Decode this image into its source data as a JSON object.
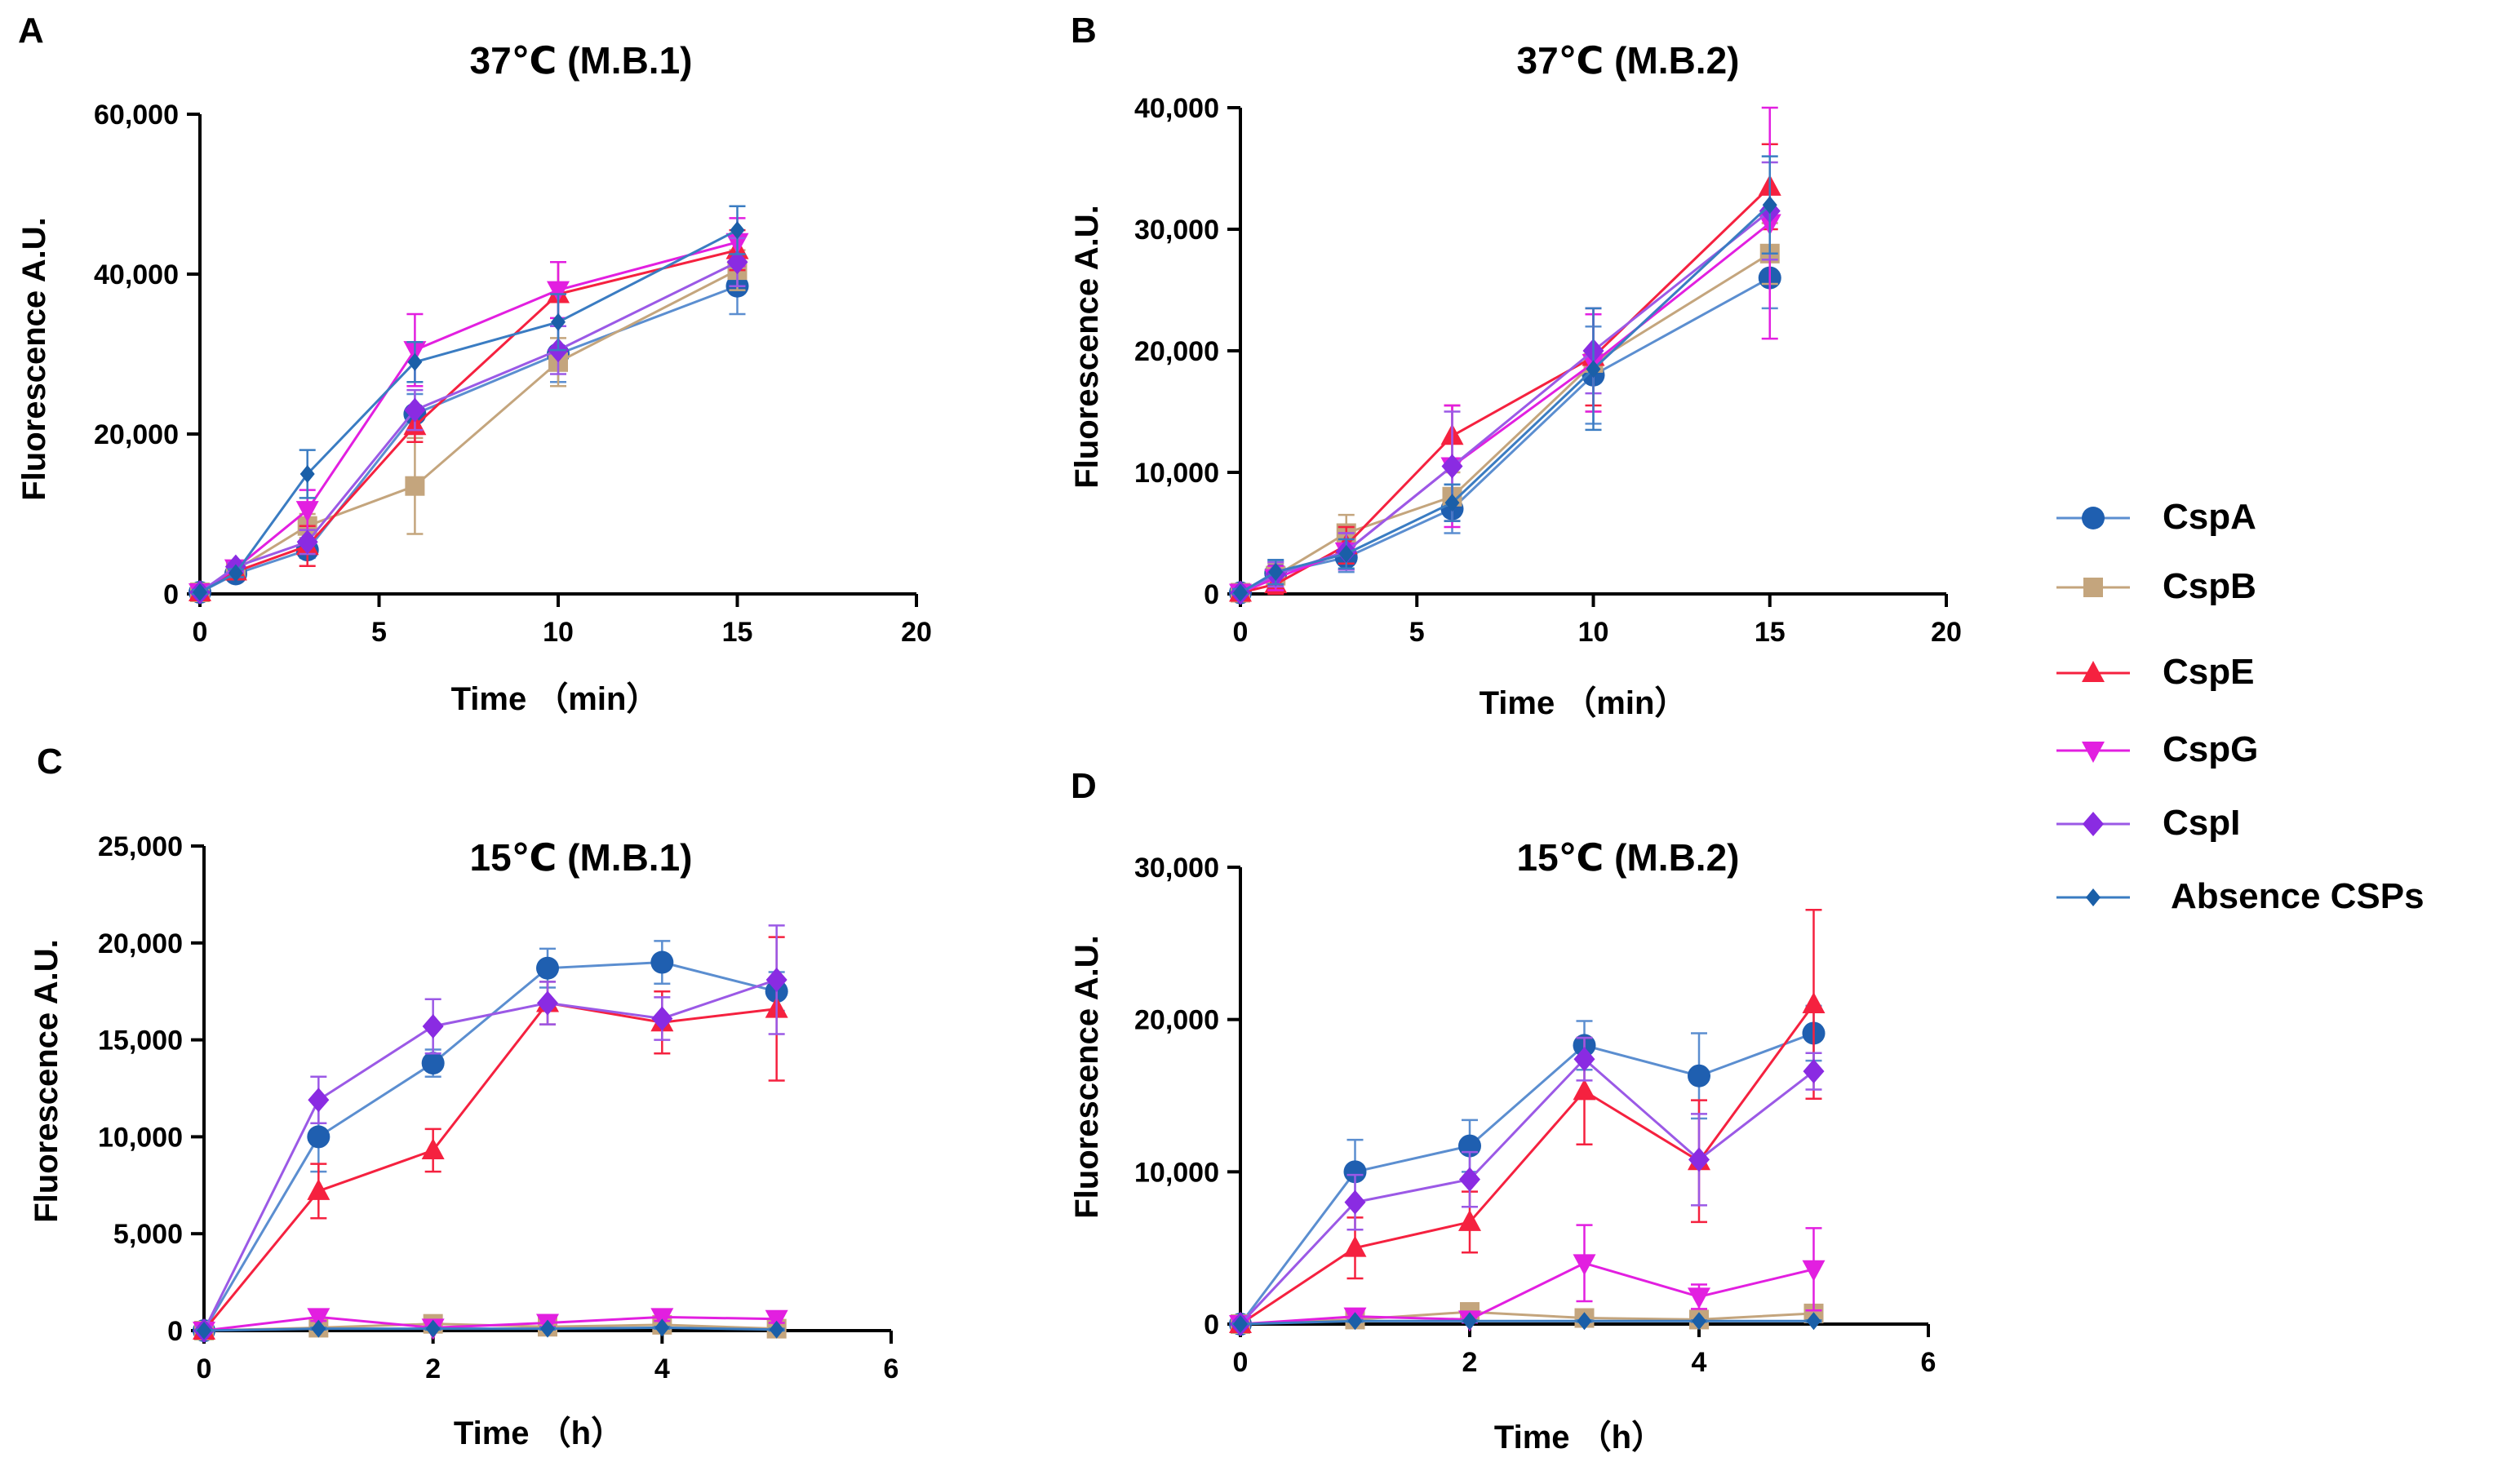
{
  "series_styles": [
    {
      "name": "CspA",
      "color": "#1f5fb0",
      "line": "#5b8ed0",
      "marker": "circle"
    },
    {
      "name": "CspB",
      "color": "#c4a57d",
      "line": "#c4a57d",
      "marker": "square"
    },
    {
      "name": "CspE",
      "color": "#f5213f",
      "line": "#f5213f",
      "marker": "triangle-up"
    },
    {
      "name": "CspG",
      "color": "#e21fe0",
      "line": "#e21fe0",
      "marker": "triangle-down"
    },
    {
      "name": "CspI",
      "color": "#8a2be2",
      "line": "#9b59e6",
      "marker": "diamond"
    },
    {
      "name": "Absence CSPs",
      "color": "#1a5fa8",
      "line": "#3a7cc2",
      "marker": "small-diamond"
    }
  ],
  "legend": {
    "labels": [
      "CspA",
      "CspB",
      "CspE",
      "CspG",
      "CspI",
      "Absence CSPs"
    ],
    "placement": "right"
  },
  "chart_data": [
    {
      "panel": "A",
      "type": "line",
      "title": "37℃ (M.B.1)",
      "xlabel": "Time （min）",
      "ylabel": "Fluorescence A.U.",
      "xlim": [
        0,
        20
      ],
      "ylim": [
        0,
        60000
      ],
      "xticks": [
        0,
        5,
        10,
        15,
        20
      ],
      "yticks": [
        0,
        20000,
        40000,
        60000
      ],
      "xtick_labels": [
        "0",
        "5",
        "10",
        "15",
        "20"
      ],
      "ytick_labels": [
        "0",
        "20,000",
        "40,000",
        "60,000"
      ],
      "x": [
        0,
        1,
        3,
        6,
        10,
        15
      ],
      "series": [
        {
          "name": "CspA",
          "values": [
            200,
            2500,
            5500,
            22500,
            30000,
            38500
          ],
          "errors": [
            300,
            500,
            1000,
            2500,
            3500,
            3500
          ]
        },
        {
          "name": "CspB",
          "values": [
            200,
            3000,
            8500,
            13500,
            29000,
            40500
          ],
          "errors": [
            300,
            500,
            1500,
            6000,
            3000,
            2500
          ]
        },
        {
          "name": "CspE",
          "values": [
            200,
            2800,
            6000,
            21000,
            37500,
            43000
          ],
          "errors": [
            300,
            500,
            2500,
            2000,
            4000,
            2500
          ]
        },
        {
          "name": "CspG",
          "values": [
            200,
            3200,
            10500,
            30500,
            38000,
            44000
          ],
          "errors": [
            300,
            500,
            2500,
            4500,
            3500,
            3000
          ]
        },
        {
          "name": "CspI",
          "values": [
            200,
            3400,
            6500,
            23000,
            30500,
            41500
          ],
          "errors": [
            300,
            500,
            1500,
            2500,
            3000,
            3000
          ]
        },
        {
          "name": "Absence CSPs",
          "values": [
            200,
            2600,
            15000,
            29000,
            34000,
            45500
          ],
          "errors": [
            300,
            500,
            3000,
            2500,
            3500,
            3000
          ]
        }
      ]
    },
    {
      "panel": "B",
      "type": "line",
      "title": "37℃ (M.B.2)",
      "xlabel": "Time （min）",
      "ylabel": "Fluorescence A.U.",
      "xlim": [
        0,
        20
      ],
      "ylim": [
        0,
        40000
      ],
      "xticks": [
        0,
        5,
        10,
        15,
        20
      ],
      "yticks": [
        0,
        10000,
        20000,
        30000,
        40000
      ],
      "xtick_labels": [
        "0",
        "5",
        "10",
        "15",
        "20"
      ],
      "ytick_labels": [
        "0",
        "10,000",
        "20,000",
        "30,000",
        "40,000"
      ],
      "x": [
        0,
        1,
        3,
        6,
        10,
        15
      ],
      "series": [
        {
          "name": "CspA",
          "values": [
            100,
            1700,
            3000,
            7000,
            18000,
            26000
          ],
          "errors": [
            300,
            1000,
            1200,
            2000,
            4000,
            2500
          ]
        },
        {
          "name": "CspB",
          "values": [
            100,
            1500,
            5000,
            8000,
            19000,
            28000
          ],
          "errors": [
            300,
            1000,
            1500,
            2000,
            4000,
            2500
          ]
        },
        {
          "name": "CspE",
          "values": [
            100,
            800,
            4000,
            13000,
            19500,
            33500
          ],
          "errors": [
            300,
            800,
            1500,
            2500,
            4000,
            3500
          ]
        },
        {
          "name": "CspG",
          "values": [
            100,
            1300,
            3500,
            10500,
            19000,
            30500
          ],
          "errors": [
            300,
            1000,
            1500,
            5000,
            4000,
            9500
          ]
        },
        {
          "name": "CspI",
          "values": [
            100,
            1600,
            3500,
            10500,
            20000,
            31500
          ],
          "errors": [
            300,
            1000,
            1500,
            4500,
            3500,
            4000
          ]
        },
        {
          "name": "Absence CSPs",
          "values": [
            100,
            1800,
            3300,
            7500,
            18500,
            32000
          ],
          "errors": [
            300,
            1000,
            1200,
            1500,
            5000,
            4000
          ]
        }
      ]
    },
    {
      "panel": "C",
      "type": "line",
      "title": "15℃ (M.B.1)",
      "xlabel": "Time （h）",
      "ylabel": "Fluorescence A.U.",
      "xlim": [
        0,
        6
      ],
      "ylim": [
        0,
        25000
      ],
      "xticks": [
        0,
        2,
        4,
        6
      ],
      "yticks": [
        0,
        5000,
        10000,
        15000,
        20000,
        25000
      ],
      "xtick_labels": [
        "0",
        "2",
        "4",
        "6"
      ],
      "ytick_labels": [
        "0",
        "5,000",
        "10,000",
        "15,000",
        "20,000",
        "25,000"
      ],
      "x": [
        0,
        1,
        2,
        3,
        4,
        5
      ],
      "series": [
        {
          "name": "CspA",
          "values": [
            0,
            10000,
            13800,
            18700,
            19000,
            17500
          ],
          "errors": [
            200,
            1800,
            700,
            1000,
            1100,
            1000
          ]
        },
        {
          "name": "CspB",
          "values": [
            0,
            150,
            350,
            200,
            300,
            100
          ],
          "errors": [
            100,
            100,
            100,
            100,
            100,
            100
          ]
        },
        {
          "name": "CspE",
          "values": [
            0,
            7200,
            9300,
            16900,
            15900,
            16600
          ],
          "errors": [
            200,
            1400,
            1100,
            1100,
            1600,
            3700
          ]
        },
        {
          "name": "CspG",
          "values": [
            0,
            700,
            150,
            400,
            700,
            600
          ],
          "errors": [
            100,
            200,
            100,
            200,
            200,
            200
          ]
        },
        {
          "name": "CspI",
          "values": [
            0,
            11900,
            15700,
            16900,
            16100,
            18100
          ],
          "errors": [
            200,
            1200,
            1400,
            1100,
            1100,
            2800
          ]
        },
        {
          "name": "Absence CSPs",
          "values": [
            0,
            100,
            100,
            100,
            150,
            50
          ],
          "errors": [
            50,
            50,
            50,
            50,
            50,
            50
          ]
        }
      ]
    },
    {
      "panel": "D",
      "type": "line",
      "title": "15℃ (M.B.2)",
      "xlabel": "Time （h）",
      "ylabel": "Fluorescence A.U.",
      "xlim": [
        0,
        6
      ],
      "ylim": [
        0,
        30000
      ],
      "xticks": [
        0,
        2,
        4,
        6
      ],
      "yticks": [
        0,
        10000,
        20000,
        30000
      ],
      "xtick_labels": [
        "0",
        "2",
        "4",
        "6"
      ],
      "ytick_labels": [
        "0",
        "10,000",
        "20,000",
        "30,000"
      ],
      "x": [
        0,
        1,
        2,
        3,
        4,
        5
      ],
      "series": [
        {
          "name": "CspA",
          "values": [
            0,
            10000,
            11700,
            18300,
            16300,
            19100
          ],
          "errors": [
            200,
            2100,
            1700,
            1600,
            2800,
            1800
          ]
        },
        {
          "name": "CspB",
          "values": [
            0,
            300,
            800,
            400,
            300,
            700
          ],
          "errors": [
            100,
            200,
            200,
            200,
            200,
            200
          ]
        },
        {
          "name": "CspE",
          "values": [
            0,
            5000,
            6700,
            15300,
            10700,
            21000
          ],
          "errors": [
            200,
            2000,
            2000,
            3500,
            4000,
            6200
          ]
        },
        {
          "name": "CspG",
          "values": [
            0,
            500,
            300,
            4000,
            1800,
            3600
          ],
          "errors": [
            100,
            200,
            200,
            2500,
            800,
            2700
          ]
        },
        {
          "name": "CspI",
          "values": [
            0,
            8000,
            9500,
            17400,
            10800,
            16600
          ],
          "errors": [
            200,
            1800,
            1800,
            1400,
            3000,
            1200
          ]
        },
        {
          "name": "Absence CSPs",
          "values": [
            0,
            200,
            200,
            200,
            200,
            200
          ],
          "errors": [
            50,
            50,
            50,
            50,
            50,
            50
          ]
        }
      ]
    }
  ]
}
